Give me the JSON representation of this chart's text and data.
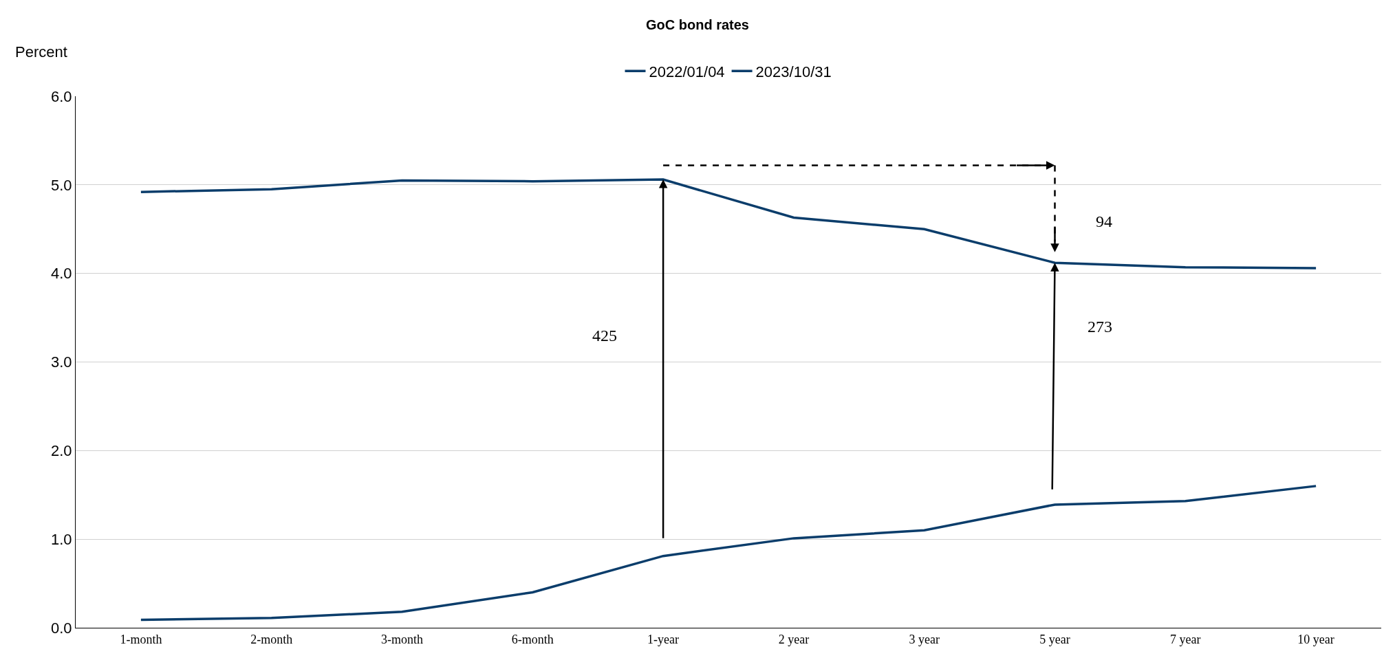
{
  "chart_data": {
    "type": "line",
    "title": "GoC bond rates",
    "ylabel": "Percent",
    "categories": [
      "1-month",
      "2-month",
      "3-month",
      "6-month",
      "1-year",
      "2 year",
      "3 year",
      "5 year",
      "7 year",
      "10 year"
    ],
    "series": [
      {
        "name": "2022/01/04",
        "color": "#0b3d6b",
        "values": [
          0.09,
          0.11,
          0.18,
          0.4,
          0.81,
          1.01,
          1.1,
          1.39,
          1.43,
          1.6
        ]
      },
      {
        "name": "2023/10/31",
        "color": "#0b3d6b",
        "values": [
          4.92,
          4.95,
          5.05,
          5.04,
          5.06,
          4.63,
          4.5,
          4.12,
          4.07,
          4.06
        ]
      }
    ],
    "ylim": [
      0,
      6
    ],
    "yticks": [
      {
        "value": 0,
        "label": "0.0"
      },
      {
        "value": 1,
        "label": "1.0"
      },
      {
        "value": 2,
        "label": "2.0"
      },
      {
        "value": 3,
        "label": "3.0"
      },
      {
        "value": 4,
        "label": "4.0"
      },
      {
        "value": 5,
        "label": "5.0"
      },
      {
        "value": 6,
        "label": "6.0"
      }
    ],
    "grid": "y",
    "legend": "top",
    "marker": "none",
    "line_style": "solid",
    "annotations": [
      "425",
      "273",
      "94"
    ]
  }
}
